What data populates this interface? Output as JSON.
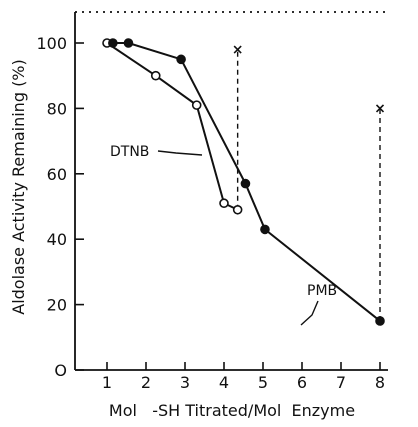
{
  "chart_data": {
    "type": "line",
    "xlabel": "Mol   -SH Titrated/Mol  Enzyme",
    "ylabel": "Aldolase Activity Remaining (%)",
    "x_tick_labels": [
      "1",
      "2",
      "3",
      "4",
      "5",
      "6",
      "7",
      "8"
    ],
    "x_tick_values": [
      1,
      2,
      3,
      4,
      5,
      6,
      7,
      8
    ],
    "y_tick_labels": [
      "O",
      "20",
      "40",
      "60",
      "80",
      "100"
    ],
    "y_tick_values": [
      0,
      20,
      40,
      60,
      80,
      100
    ],
    "ylim": [
      0,
      110
    ],
    "grid": false,
    "series": [
      {
        "name": "DTNB",
        "marker": "open-circle",
        "x": [
          1.0,
          2.25,
          3.3,
          4.0,
          4.35
        ],
        "y": [
          100,
          90,
          81,
          51,
          49
        ]
      },
      {
        "name": "PMB",
        "marker": "filled-circle",
        "x": [
          1.15,
          1.55,
          2.9,
          4.55,
          5.05,
          8.0
        ],
        "y": [
          100,
          100,
          95,
          57,
          43,
          15
        ]
      }
    ],
    "endpoints": [
      {
        "x": 4.35,
        "y_low": 49,
        "y_high": 98,
        "marker": "x",
        "style": "dashed"
      },
      {
        "x": 8.0,
        "y_low": 15,
        "y_high": 80,
        "marker": "x",
        "style": "dashed"
      }
    ],
    "annotations": [
      {
        "text": "DTNB",
        "points_to_series": "DTNB"
      },
      {
        "text": "PMB",
        "points_to_series": "PMB"
      }
    ]
  }
}
